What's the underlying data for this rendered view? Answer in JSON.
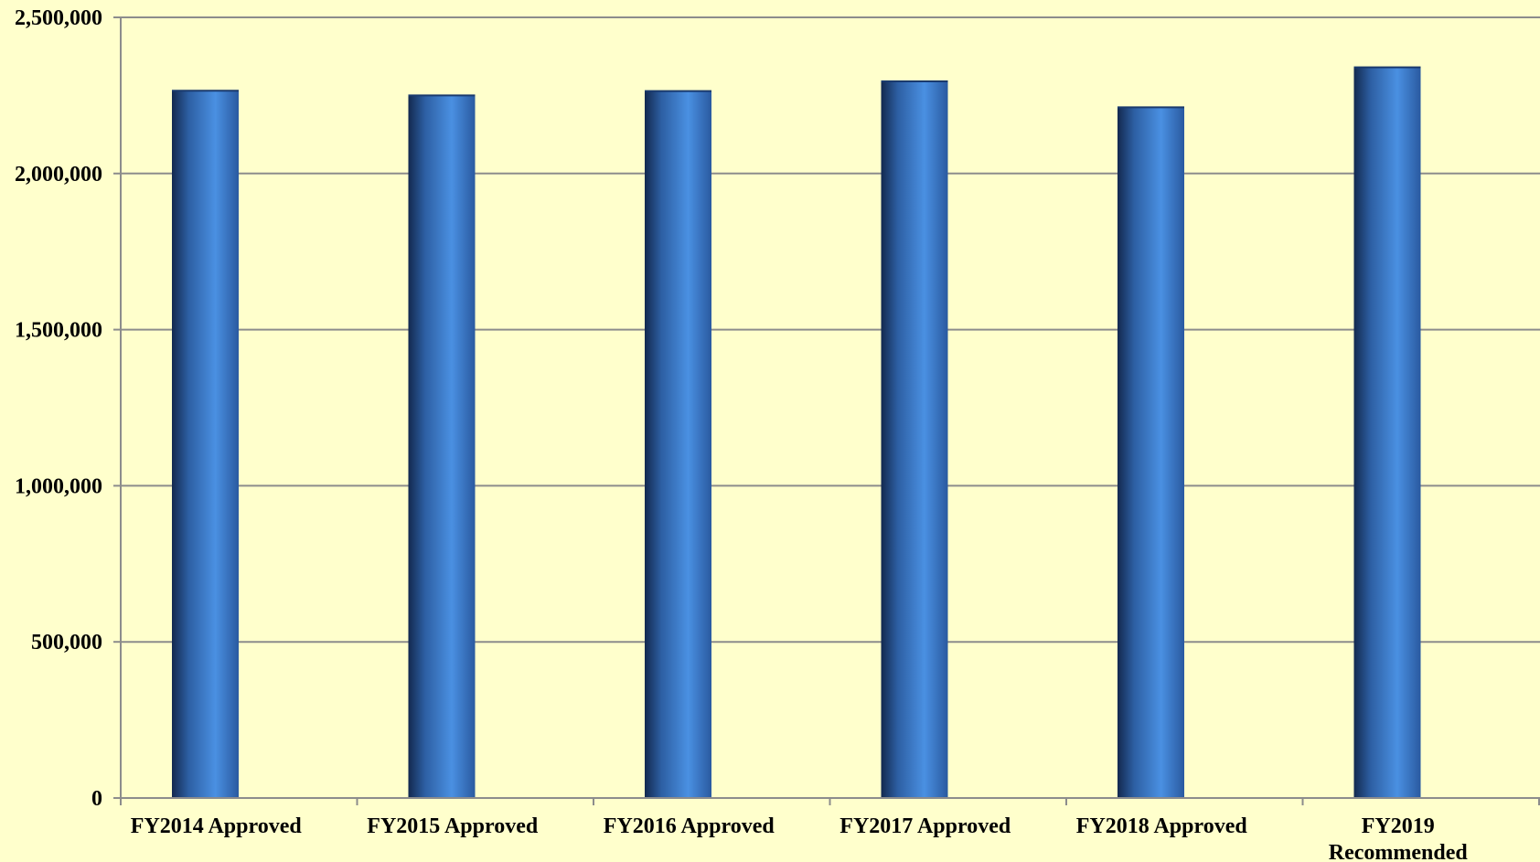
{
  "chart_data": {
    "type": "bar",
    "title": "",
    "xlabel": "",
    "ylabel": "",
    "ylim": [
      0,
      2500000
    ],
    "y_ticks": [
      "0",
      "500,000",
      "1,000,000",
      "1,500,000",
      "2,000,000",
      "2,500,000"
    ],
    "y_tick_values": [
      0,
      500000,
      1000000,
      1500000,
      2000000,
      2500000
    ],
    "grid": true,
    "legend": "none",
    "categories": [
      [
        "FY2014 Approved"
      ],
      [
        "FY2015 Approved"
      ],
      [
        "FY2016 Approved"
      ],
      [
        "FY2017 Approved"
      ],
      [
        "FY2018 Approved"
      ],
      [
        "FY2019",
        "Recommended"
      ]
    ],
    "values": [
      2265000,
      2250000,
      2264000,
      2295000,
      2212000,
      2340000
    ],
    "colors": {
      "background": "#ffffcc",
      "bar_dark": "#1a3a6e",
      "bar_light": "#4a90e2",
      "grid": "#8c8c8c",
      "axis": "#8c8c8c"
    }
  }
}
